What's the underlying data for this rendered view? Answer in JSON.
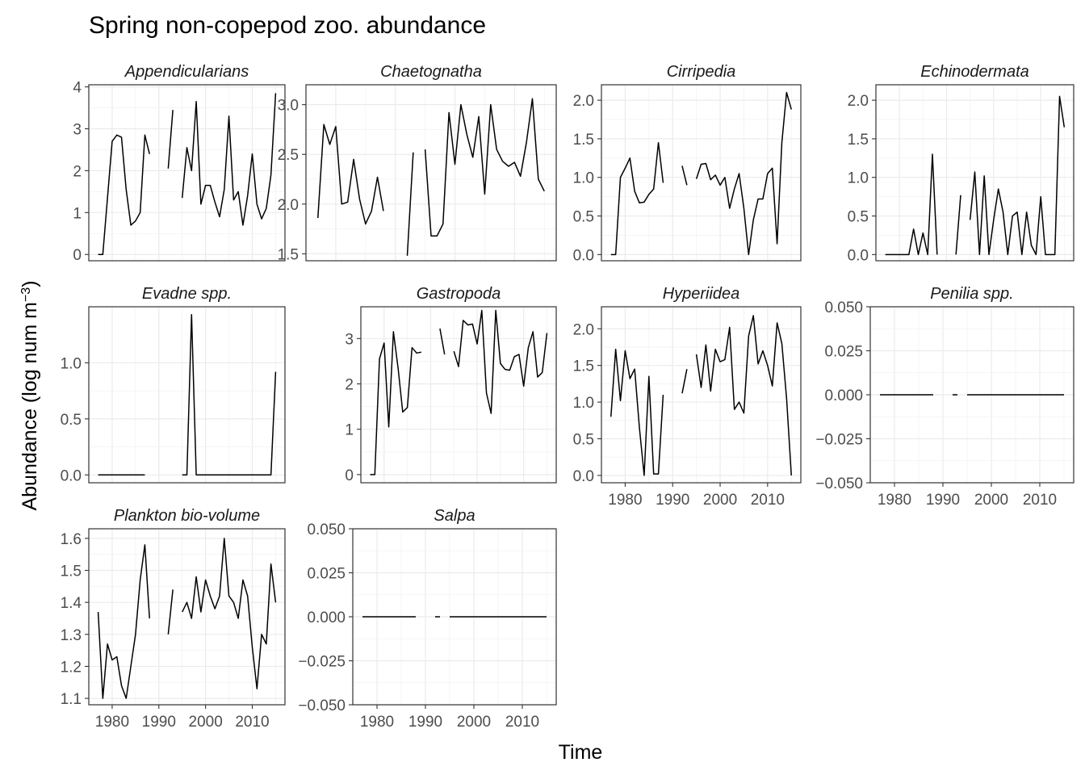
{
  "title": "Spring non-copepod zoo. abundance",
  "xlabel": "Time",
  "ylabel_main": "Abundance (log num m",
  "ylabel_sup": "−3",
  "ylabel_close": ")",
  "chart_data": {
    "type": "line",
    "title": "Spring non-copepod zoo. abundance",
    "xlabel": "Time",
    "ylabel": "Abundance (log num m^-3)",
    "facet_scales": "free_y",
    "x_range": [
      1975,
      2017
    ],
    "x_ticks": [
      1980,
      1990,
      2000,
      2010
    ],
    "grid": true,
    "panels": [
      {
        "name": "Appendicularians",
        "yrange": [
          -0.15,
          4.05
        ],
        "yticks": [
          0,
          1,
          2,
          3,
          4
        ],
        "x": [
          1977,
          1978,
          1979,
          1980,
          1981,
          1982,
          1983,
          1984,
          1985,
          1986,
          1987,
          1988,
          1989,
          1990,
          1991,
          1992,
          1993,
          1994,
          1995,
          1996,
          1997,
          1998,
          1999,
          2000,
          2001,
          2002,
          2003,
          2004,
          2005,
          2006,
          2007,
          2008,
          2009,
          2010,
          2011,
          2012,
          2013,
          2014,
          2015
        ],
        "y": [
          0,
          0,
          1.35,
          2.7,
          2.85,
          2.8,
          1.55,
          0.7,
          0.8,
          1.0,
          2.85,
          2.4,
          null,
          null,
          null,
          2.05,
          3.45,
          null,
          1.35,
          2.55,
          2.0,
          3.65,
          1.2,
          1.65,
          1.65,
          1.25,
          0.9,
          1.55,
          3.3,
          1.3,
          1.5,
          0.7,
          1.4,
          2.4,
          1.2,
          0.85,
          1.1,
          1.9,
          3.85
        ]
      },
      {
        "name": "Chaetognatha",
        "yrange": [
          1.43,
          3.2
        ],
        "yticks": [
          1.5,
          2.0,
          2.5,
          3.0
        ],
        "x": [
          1977,
          1978,
          1979,
          1980,
          1981,
          1982,
          1983,
          1984,
          1985,
          1986,
          1987,
          1988,
          1989,
          1990,
          1991,
          1992,
          1993,
          1994,
          1995,
          1996,
          1997,
          1998,
          1999,
          2000,
          2001,
          2002,
          2003,
          2004,
          2005,
          2006,
          2007,
          2008,
          2009,
          2010,
          2011,
          2012,
          2013,
          2014,
          2015
        ],
        "y": [
          1.86,
          2.8,
          2.6,
          2.78,
          2.0,
          2.02,
          2.45,
          2.05,
          1.8,
          1.93,
          2.27,
          1.93,
          null,
          null,
          null,
          1.48,
          2.52,
          null,
          2.55,
          1.68,
          1.68,
          1.8,
          2.92,
          2.4,
          3.0,
          2.7,
          2.47,
          2.88,
          2.1,
          3.0,
          2.55,
          2.43,
          2.38,
          2.42,
          2.28,
          2.62,
          3.06,
          2.25,
          2.13
        ]
      },
      {
        "name": "Cirripedia",
        "yrange": [
          -0.08,
          2.2
        ],
        "yticks": [
          0.0,
          0.5,
          1.0,
          1.5,
          2.0
        ],
        "x": [
          1977,
          1978,
          1979,
          1980,
          1981,
          1982,
          1983,
          1984,
          1985,
          1986,
          1987,
          1988,
          1989,
          1990,
          1991,
          1992,
          1993,
          1994,
          1995,
          1996,
          1997,
          1998,
          1999,
          2000,
          2001,
          2002,
          2003,
          2004,
          2005,
          2006,
          2007,
          2008,
          2009,
          2010,
          2011,
          2012,
          2013,
          2014,
          2015
        ],
        "y": [
          0,
          0,
          1.0,
          1.12,
          1.25,
          0.82,
          0.67,
          0.68,
          0.78,
          0.85,
          1.45,
          0.93,
          null,
          null,
          null,
          1.15,
          0.9,
          null,
          0.98,
          1.17,
          1.18,
          0.97,
          1.03,
          0.9,
          1.0,
          0.6,
          0.85,
          1.05,
          0.6,
          0.0,
          0.45,
          0.72,
          0.72,
          1.05,
          1.12,
          0.14,
          1.45,
          2.1,
          1.88
        ]
      },
      {
        "name": "Echinodermata",
        "yrange": [
          -0.08,
          2.2
        ],
        "yticks": [
          0.0,
          0.5,
          1.0,
          1.5,
          2.0
        ],
        "x": [
          1977,
          1978,
          1979,
          1980,
          1981,
          1982,
          1983,
          1984,
          1985,
          1986,
          1987,
          1988,
          1989,
          1990,
          1991,
          1992,
          1993,
          1994,
          1995,
          1996,
          1997,
          1998,
          1999,
          2000,
          2001,
          2002,
          2003,
          2004,
          2005,
          2006,
          2007,
          2008,
          2009,
          2010,
          2011,
          2012,
          2013,
          2014,
          2015
        ],
        "y": [
          0,
          0,
          0,
          0,
          0,
          0,
          0.33,
          0,
          0.28,
          0,
          1.3,
          0,
          null,
          null,
          null,
          0,
          0.77,
          null,
          0.45,
          1.07,
          0,
          1.02,
          0,
          0.45,
          0.85,
          0.55,
          0,
          0.5,
          0.55,
          0,
          0.55,
          0.12,
          0,
          0.75,
          0,
          0,
          0,
          2.05,
          1.65
        ]
      },
      {
        "name": "Evadne spp.",
        "yrange": [
          -0.07,
          1.5
        ],
        "yticks": [
          0.0,
          0.5,
          1.0
        ],
        "x": [
          1977,
          1978,
          1979,
          1980,
          1981,
          1982,
          1983,
          1984,
          1985,
          1986,
          1987,
          1988,
          1989,
          1990,
          1991,
          1992,
          1993,
          1994,
          1995,
          1996,
          1997,
          1998,
          1999,
          2000,
          2001,
          2002,
          2003,
          2004,
          2005,
          2006,
          2007,
          2008,
          2009,
          2010,
          2011,
          2012,
          2013,
          2014,
          2015
        ],
        "y": [
          0,
          0,
          0,
          0,
          0,
          0,
          0,
          0,
          0,
          0,
          0,
          null,
          null,
          null,
          null,
          0,
          null,
          null,
          0,
          0,
          1.43,
          0,
          0,
          0,
          0,
          0,
          0,
          0,
          0,
          0,
          0,
          0,
          0,
          0,
          0,
          0,
          0,
          0,
          0.92
        ]
      },
      {
        "name": "Gastropoda",
        "yrange": [
          -0.18,
          3.7
        ],
        "yticks": [
          0,
          1,
          2,
          3
        ],
        "x": [
          1977,
          1978,
          1979,
          1980,
          1981,
          1982,
          1983,
          1984,
          1985,
          1986,
          1987,
          1988,
          1989,
          1990,
          1991,
          1992,
          1993,
          1994,
          1995,
          1996,
          1997,
          1998,
          1999,
          2000,
          2001,
          2002,
          2003,
          2004,
          2005,
          2006,
          2007,
          2008,
          2009,
          2010,
          2011,
          2012,
          2013,
          2014,
          2015
        ],
        "y": [
          0,
          0,
          2.55,
          2.9,
          1.05,
          3.15,
          2.35,
          1.38,
          1.48,
          2.8,
          2.68,
          2.7,
          null,
          null,
          null,
          3.22,
          2.65,
          null,
          2.72,
          2.38,
          3.4,
          3.3,
          3.32,
          2.88,
          3.62,
          1.8,
          1.35,
          3.62,
          2.45,
          2.32,
          2.3,
          2.6,
          2.65,
          1.95,
          2.8,
          3.15,
          2.15,
          2.25,
          3.12
        ]
      },
      {
        "name": "Hyperiidea",
        "yrange": [
          -0.1,
          2.3
        ],
        "yticks": [
          0.0,
          0.5,
          1.0,
          1.5,
          2.0
        ],
        "x": [
          1977,
          1978,
          1979,
          1980,
          1981,
          1982,
          1983,
          1984,
          1985,
          1986,
          1987,
          1988,
          1989,
          1990,
          1991,
          1992,
          1993,
          1994,
          1995,
          1996,
          1997,
          1998,
          1999,
          2000,
          2001,
          2002,
          2003,
          2004,
          2005,
          2006,
          2007,
          2008,
          2009,
          2010,
          2011,
          2012,
          2013,
          2014,
          2015
        ],
        "y": [
          0.8,
          1.72,
          1.02,
          1.7,
          1.32,
          1.45,
          0.65,
          0.0,
          1.35,
          0.02,
          0.02,
          1.1,
          null,
          null,
          null,
          1.12,
          1.45,
          null,
          1.65,
          1.2,
          1.78,
          1.15,
          1.72,
          1.55,
          1.58,
          2.02,
          0.9,
          1.0,
          0.85,
          1.9,
          2.18,
          1.52,
          1.7,
          1.5,
          1.22,
          2.08,
          1.8,
          1.05,
          0.0
        ]
      },
      {
        "name": "Penilia spp.",
        "yrange": [
          -0.05,
          0.05
        ],
        "yticks": [
          -0.05,
          -0.025,
          0.0,
          0.025,
          0.05
        ],
        "ytick_labels": [
          "−0.050",
          "−0.025",
          "0.000",
          "0.025",
          "0.050"
        ],
        "x": [
          1977,
          1978,
          1979,
          1980,
          1981,
          1982,
          1983,
          1984,
          1985,
          1986,
          1987,
          1988,
          1989,
          1990,
          1991,
          1992,
          1993,
          1994,
          1995,
          1996,
          1997,
          1998,
          1999,
          2000,
          2001,
          2002,
          2003,
          2004,
          2005,
          2006,
          2007,
          2008,
          2009,
          2010,
          2011,
          2012,
          2013,
          2014,
          2015
        ],
        "y": [
          0,
          0,
          0,
          0,
          0,
          0,
          0,
          0,
          0,
          0,
          0,
          0,
          null,
          null,
          null,
          0,
          0,
          null,
          0,
          0,
          0,
          0,
          0,
          0,
          0,
          0,
          0,
          0,
          0,
          0,
          0,
          0,
          0,
          0,
          0,
          0,
          0,
          0,
          0
        ]
      },
      {
        "name": "Plankton bio-volume",
        "yrange": [
          1.08,
          1.63
        ],
        "yticks": [
          1.1,
          1.2,
          1.3,
          1.4,
          1.5,
          1.6
        ],
        "x": [
          1977,
          1978,
          1979,
          1980,
          1981,
          1982,
          1983,
          1984,
          1985,
          1986,
          1987,
          1988,
          1989,
          1990,
          1991,
          1992,
          1993,
          1994,
          1995,
          1996,
          1997,
          1998,
          1999,
          2000,
          2001,
          2002,
          2003,
          2004,
          2005,
          2006,
          2007,
          2008,
          2009,
          2010,
          2011,
          2012,
          2013,
          2014,
          2015
        ],
        "y": [
          1.37,
          1.1,
          1.27,
          1.22,
          1.23,
          1.14,
          1.1,
          1.2,
          1.3,
          1.47,
          1.58,
          1.35,
          null,
          null,
          null,
          1.3,
          1.44,
          null,
          1.37,
          1.4,
          1.35,
          1.48,
          1.37,
          1.47,
          1.42,
          1.38,
          1.42,
          1.6,
          1.42,
          1.4,
          1.35,
          1.47,
          1.42,
          1.26,
          1.13,
          1.3,
          1.27,
          1.52,
          1.4
        ]
      },
      {
        "name": "Salpa",
        "yrange": [
          -0.05,
          0.05
        ],
        "yticks": [
          -0.05,
          -0.025,
          0.0,
          0.025,
          0.05
        ],
        "ytick_labels": [
          "−0.050",
          "−0.025",
          "0.000",
          "0.025",
          "0.050"
        ],
        "x": [
          1977,
          1978,
          1979,
          1980,
          1981,
          1982,
          1983,
          1984,
          1985,
          1986,
          1987,
          1988,
          1989,
          1990,
          1991,
          1992,
          1993,
          1994,
          1995,
          1996,
          1997,
          1998,
          1999,
          2000,
          2001,
          2002,
          2003,
          2004,
          2005,
          2006,
          2007,
          2008,
          2009,
          2010,
          2011,
          2012,
          2013,
          2014,
          2015
        ],
        "y": [
          0,
          0,
          0,
          0,
          0,
          0,
          0,
          0,
          0,
          0,
          0,
          0,
          null,
          null,
          null,
          0,
          0,
          null,
          0,
          0,
          0,
          0,
          0,
          0,
          0,
          0,
          0,
          0,
          0,
          0,
          0,
          0,
          0,
          0,
          0,
          0,
          0,
          0,
          0
        ]
      }
    ]
  }
}
